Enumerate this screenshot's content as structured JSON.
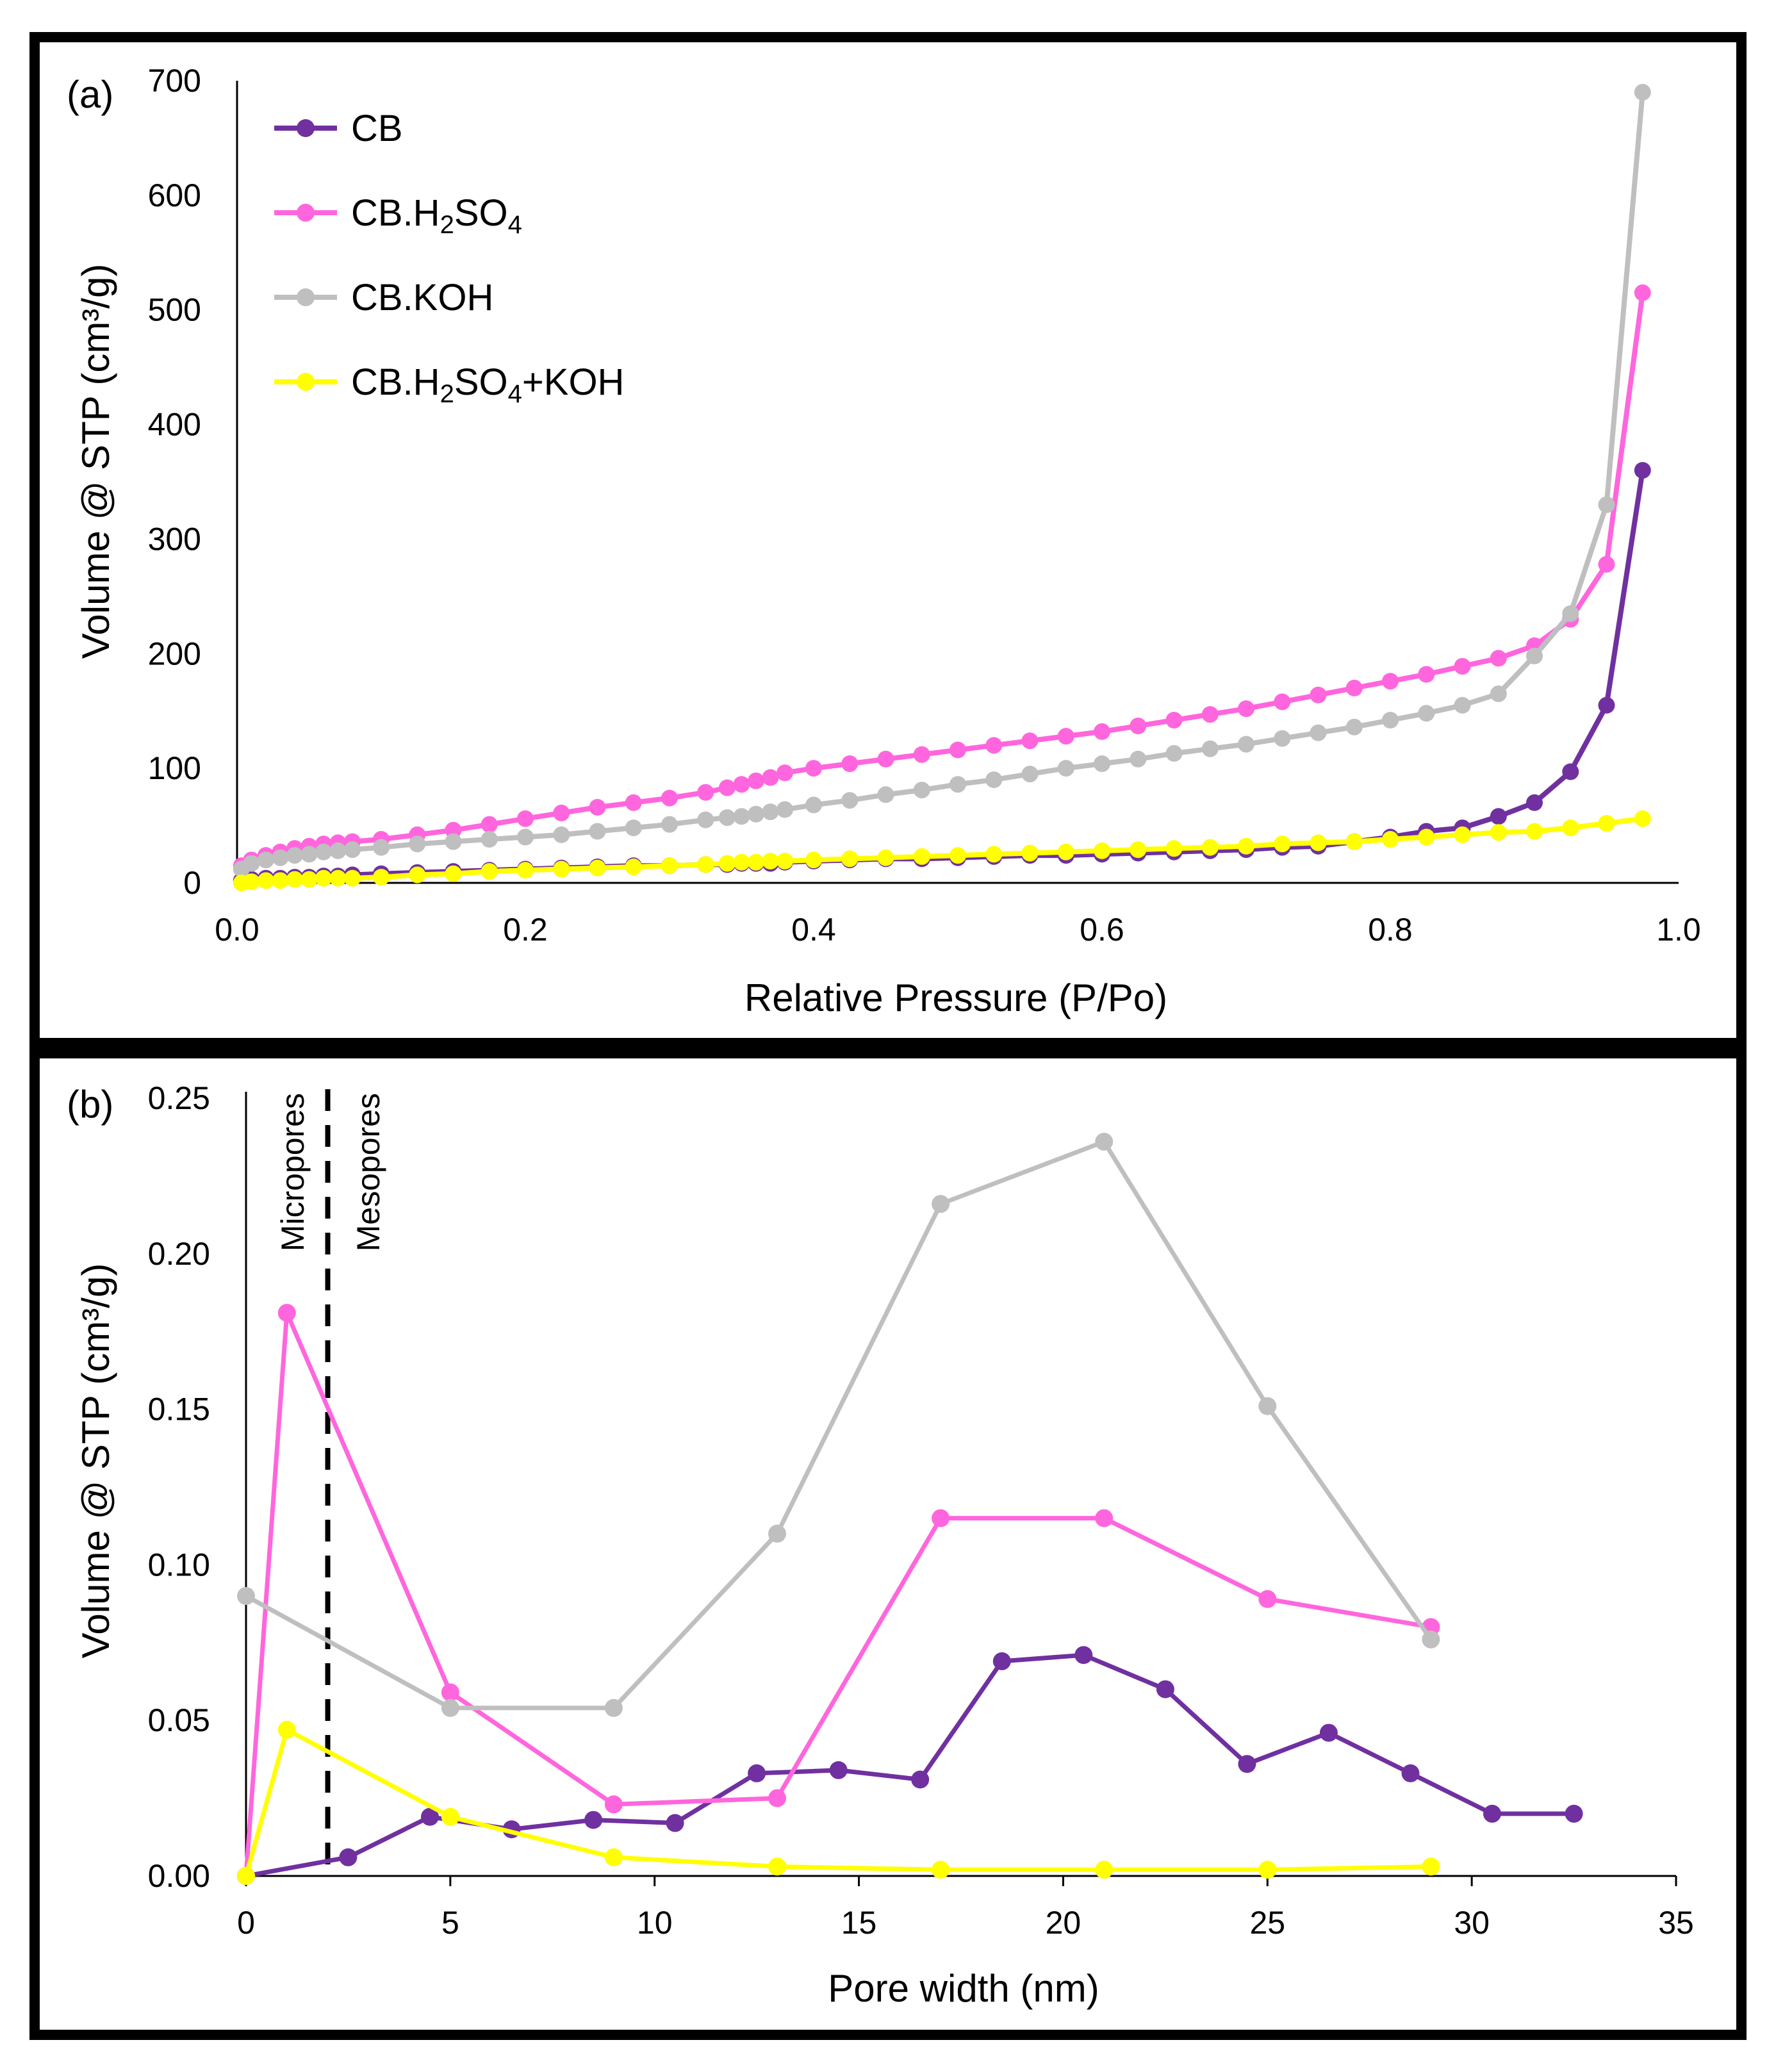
{
  "chart_data": [
    {
      "panel": "(a)",
      "type": "line",
      "xlabel": "Relative Pressure (P/Po)",
      "ylabel": "Volume @ STP (cm³/g)",
      "xlim": [
        0,
        1.0
      ],
      "ylim": [
        0,
        700
      ],
      "xticks": [
        "0.0",
        "0.2",
        "0.4",
        "0.6",
        "0.8",
        "1.0"
      ],
      "yticks": [
        "0",
        "100",
        "200",
        "300",
        "400",
        "500",
        "600",
        "700"
      ],
      "legend_position": "top-left",
      "series": [
        {
          "name": "CB",
          "label_main": "CB",
          "label_sub": "",
          "label_rest": "",
          "color": "#7030a0",
          "x": [
            0.003,
            0.01,
            0.02,
            0.03,
            0.04,
            0.05,
            0.06,
            0.07,
            0.08,
            0.1,
            0.125,
            0.15,
            0.175,
            0.2,
            0.225,
            0.25,
            0.275,
            0.3,
            0.325,
            0.34,
            0.35,
            0.36,
            0.37,
            0.38,
            0.4,
            0.425,
            0.45,
            0.475,
            0.5,
            0.525,
            0.55,
            0.575,
            0.6,
            0.625,
            0.65,
            0.675,
            0.7,
            0.725,
            0.75,
            0.775,
            0.8,
            0.825,
            0.85,
            0.875,
            0.9,
            0.925,
            0.95,
            0.975
          ],
          "y": [
            2,
            3,
            4,
            4,
            5,
            5,
            6,
            6,
            7,
            8,
            9,
            10,
            11,
            12,
            13,
            14,
            15,
            15,
            16,
            16,
            17,
            17,
            17,
            18,
            19,
            20,
            21,
            21,
            22,
            23,
            24,
            24,
            25,
            26,
            27,
            28,
            29,
            31,
            32,
            36,
            40,
            45,
            48,
            58,
            70,
            97,
            155,
            360
          ]
        },
        {
          "name": "CB.H2SO4",
          "label_main": "CB.H",
          "label_sub": "2",
          "label_rest": "SO",
          "label_sub2": "4",
          "color": "#ff66dd",
          "x": [
            0.003,
            0.01,
            0.02,
            0.03,
            0.04,
            0.05,
            0.06,
            0.07,
            0.08,
            0.1,
            0.125,
            0.15,
            0.175,
            0.2,
            0.225,
            0.25,
            0.275,
            0.3,
            0.325,
            0.34,
            0.35,
            0.36,
            0.37,
            0.38,
            0.4,
            0.425,
            0.45,
            0.475,
            0.5,
            0.525,
            0.55,
            0.575,
            0.6,
            0.625,
            0.65,
            0.675,
            0.7,
            0.725,
            0.75,
            0.775,
            0.8,
            0.825,
            0.85,
            0.875,
            0.9,
            0.925,
            0.95,
            0.975
          ],
          "y": [
            15,
            20,
            24,
            27,
            30,
            32,
            34,
            35,
            36,
            38,
            42,
            46,
            51,
            56,
            61,
            66,
            70,
            74,
            79,
            83,
            86,
            89,
            92,
            96,
            100,
            104,
            108,
            112,
            116,
            120,
            124,
            128,
            132,
            137,
            142,
            147,
            152,
            158,
            164,
            170,
            176,
            182,
            189,
            196,
            207,
            230,
            278,
            515
          ]
        },
        {
          "name": "CB.KOH",
          "label_main": "CB.KOH",
          "label_sub": "",
          "label_rest": "",
          "color": "#bfbfbf",
          "x": [
            0.003,
            0.01,
            0.02,
            0.03,
            0.04,
            0.05,
            0.06,
            0.07,
            0.08,
            0.1,
            0.125,
            0.15,
            0.175,
            0.2,
            0.225,
            0.25,
            0.275,
            0.3,
            0.325,
            0.34,
            0.35,
            0.36,
            0.37,
            0.38,
            0.4,
            0.425,
            0.45,
            0.475,
            0.5,
            0.525,
            0.55,
            0.575,
            0.6,
            0.625,
            0.65,
            0.675,
            0.7,
            0.725,
            0.75,
            0.775,
            0.8,
            0.825,
            0.85,
            0.875,
            0.9,
            0.925,
            0.95,
            0.975
          ],
          "y": [
            12,
            17,
            20,
            22,
            24,
            25,
            27,
            28,
            29,
            31,
            34,
            36,
            38,
            40,
            42,
            45,
            48,
            51,
            55,
            57,
            58,
            60,
            62,
            64,
            68,
            72,
            77,
            81,
            86,
            90,
            95,
            100,
            104,
            108,
            113,
            117,
            121,
            126,
            131,
            136,
            142,
            148,
            155,
            165,
            198,
            235,
            330,
            690
          ]
        },
        {
          "name": "CB.H2SO4+KOH",
          "label_main": "CB.H",
          "label_sub": "2",
          "label_rest": "SO",
          "label_sub2": "4",
          "label_tail": "+KOH",
          "color": "#ffff00",
          "x": [
            0.003,
            0.01,
            0.02,
            0.03,
            0.04,
            0.05,
            0.06,
            0.07,
            0.08,
            0.1,
            0.125,
            0.15,
            0.175,
            0.2,
            0.225,
            0.25,
            0.275,
            0.3,
            0.325,
            0.34,
            0.35,
            0.36,
            0.37,
            0.38,
            0.4,
            0.425,
            0.45,
            0.475,
            0.5,
            0.525,
            0.55,
            0.575,
            0.6,
            0.625,
            0.65,
            0.675,
            0.7,
            0.725,
            0.75,
            0.775,
            0.8,
            0.825,
            0.85,
            0.875,
            0.9,
            0.925,
            0.95,
            0.975
          ],
          "y": [
            0,
            1,
            2,
            2,
            3,
            3,
            4,
            4,
            4,
            5,
            7,
            8,
            10,
            11,
            12,
            13,
            14,
            15,
            16,
            17,
            18,
            18,
            19,
            19,
            20,
            21,
            22,
            23,
            24,
            25,
            26,
            27,
            28,
            29,
            30,
            31,
            32,
            34,
            35,
            36,
            38,
            40,
            42,
            44,
            45,
            48,
            52,
            56
          ]
        }
      ]
    },
    {
      "panel": "(b)",
      "type": "line",
      "xlabel": "Pore width (nm)",
      "ylabel": "Volume @ STP (cm³/g)",
      "xlim": [
        0,
        35
      ],
      "ylim": [
        0,
        0.25
      ],
      "xticks": [
        "0",
        "5",
        "10",
        "15",
        "20",
        "25",
        "30",
        "35"
      ],
      "yticks": [
        "0.00",
        "0.05",
        "0.10",
        "0.15",
        "0.20",
        "0.25"
      ],
      "divider_x": 2,
      "annotations": {
        "left": "Micropores",
        "right": "Mesopores"
      },
      "series": [
        {
          "name": "CB",
          "color": "#7030a0",
          "x": [
            0,
            2.5,
            4.5,
            6.5,
            8.5,
            10.5,
            12.5,
            14.5,
            16.5,
            18.5,
            20.5,
            22.5,
            24.5,
            26.5,
            28.5,
            30.5,
            32.5
          ],
          "y": [
            0,
            0.006,
            0.019,
            0.015,
            0.018,
            0.017,
            0.033,
            0.034,
            0.031,
            0.069,
            0.071,
            0.06,
            0.036,
            0.046,
            0.033,
            0.02,
            0.02
          ]
        },
        {
          "name": "CB.H2SO4",
          "color": "#ff66dd",
          "x": [
            0,
            1,
            5,
            9,
            13,
            17,
            21,
            25,
            29
          ],
          "y": [
            0,
            0.181,
            0.059,
            0.023,
            0.025,
            0.115,
            0.115,
            0.089,
            0.08
          ]
        },
        {
          "name": "CB.KOH",
          "color": "#bfbfbf",
          "x": [
            0,
            5,
            9,
            13,
            17,
            21,
            25,
            29
          ],
          "y": [
            0.09,
            0.054,
            0.054,
            0.11,
            0.216,
            0.236,
            0.151,
            0.076
          ]
        },
        {
          "name": "CB.H2SO4+KOH",
          "color": "#ffff00",
          "x": [
            0,
            1,
            5,
            9,
            13,
            17,
            21,
            25,
            29
          ],
          "y": [
            0,
            0.047,
            0.019,
            0.006,
            0.003,
            0.002,
            0.002,
            0.002,
            0.003
          ]
        }
      ]
    }
  ]
}
